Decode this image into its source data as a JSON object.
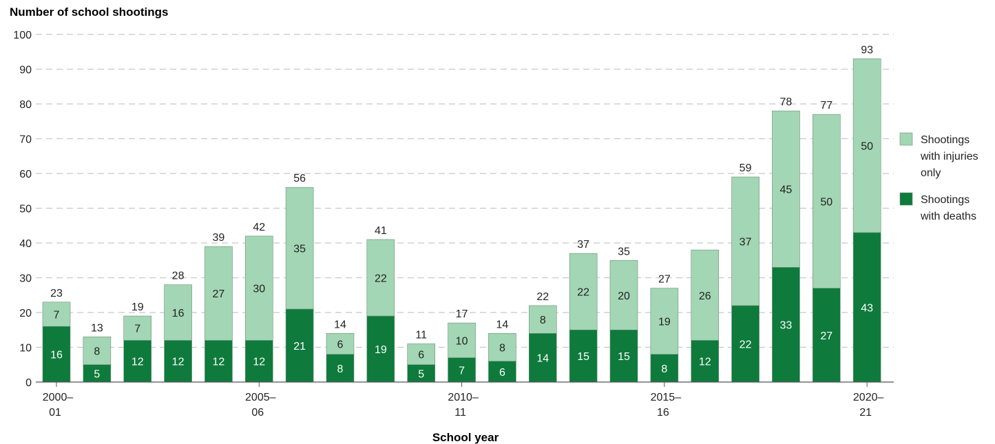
{
  "chart_data": {
    "type": "bar",
    "stacked": true,
    "title": "",
    "ylabel": "Number of school shootings",
    "xlabel": "School year",
    "ylim": [
      0,
      100
    ],
    "yticks": [
      0,
      10,
      20,
      30,
      40,
      50,
      60,
      70,
      80,
      90,
      100
    ],
    "grid": true,
    "legend_position": "right",
    "categories": [
      "2000–01",
      "2001–02",
      "2002–03",
      "2003–04",
      "2004–05",
      "2005–06",
      "2006–07",
      "2007–08",
      "2008–09",
      "2009–10",
      "2010–11",
      "2011–12",
      "2012–13",
      "2013–14",
      "2014–15",
      "2015–16",
      "2016–17",
      "2017–18",
      "2018–19",
      "2019–20",
      "2020–21"
    ],
    "tick_labels": [
      {
        "index": 0,
        "line1": "2000–",
        "line2": "01"
      },
      {
        "index": 5,
        "line1": "2005–",
        "line2": "06"
      },
      {
        "index": 10,
        "line1": "2010–",
        "line2": "11"
      },
      {
        "index": 15,
        "line1": "2015–",
        "line2": "16"
      },
      {
        "index": 20,
        "line1": "2020–",
        "line2": "21"
      }
    ],
    "series": [
      {
        "name": "Shootings with deaths",
        "legend_lines": [
          "Shootings",
          "with deaths"
        ],
        "color": "#0e7a3c",
        "label_color": "#ffffff",
        "values": [
          16,
          5,
          12,
          12,
          12,
          12,
          21,
          8,
          19,
          5,
          7,
          6,
          14,
          15,
          15,
          8,
          12,
          22,
          33,
          27,
          43
        ]
      },
      {
        "name": "Shootings with injuries only",
        "legend_lines": [
          "Shootings",
          "with injuries",
          "only"
        ],
        "color": "#a3d6b4",
        "label_color": "#222222",
        "values": [
          7,
          8,
          7,
          16,
          27,
          30,
          35,
          6,
          22,
          6,
          10,
          8,
          8,
          22,
          20,
          19,
          26,
          37,
          45,
          50,
          50
        ]
      }
    ],
    "totals": [
      23,
      13,
      19,
      28,
      39,
      42,
      56,
      14,
      41,
      11,
      17,
      14,
      22,
      37,
      35,
      27,
      38,
      59,
      78,
      77,
      93
    ],
    "show_totals": [
      true,
      true,
      true,
      true,
      true,
      true,
      true,
      true,
      true,
      true,
      true,
      true,
      true,
      true,
      true,
      true,
      false,
      true,
      true,
      true,
      true
    ]
  }
}
